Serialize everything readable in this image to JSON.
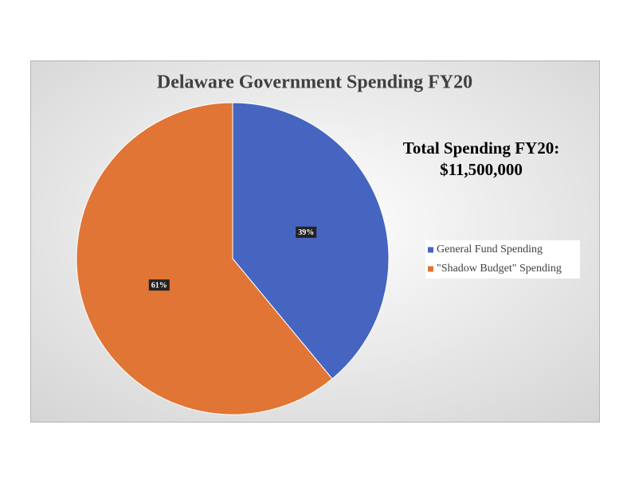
{
  "chart_data": {
    "type": "pie",
    "title": "Delaware Government Spending FY20",
    "annotation": [
      "Total Spending FY20:",
      "$11,500,000"
    ],
    "categories": [
      "General Fund Spending",
      "\"Shadow Budget\" Spending"
    ],
    "values": [
      39,
      61
    ],
    "value_labels": [
      "39%",
      "61%"
    ],
    "colors": [
      "#4565c0",
      "#e07535"
    ],
    "legend": "right"
  }
}
